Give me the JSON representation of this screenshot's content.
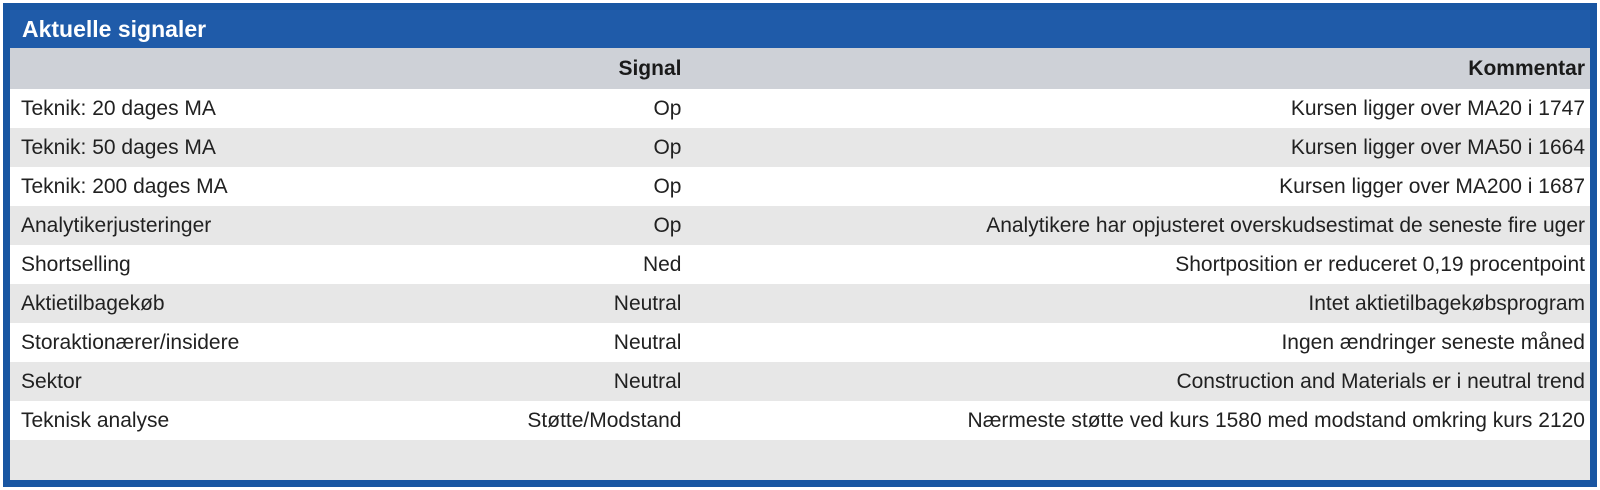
{
  "title": "Aktuelle signaler",
  "colors": {
    "border": "#1856a2",
    "title_bg": "#1f5ba9",
    "title_text": "#ffffff",
    "column_header_bg": "#ced1d7",
    "row_alt_bg": "#e7e7e7",
    "row_bg": "#ffffff",
    "text": "#212121"
  },
  "columns": {
    "name": "",
    "signal": "Signal",
    "comment": "Kommentar"
  },
  "rows": [
    {
      "name": "Teknik: 20 dages MA",
      "signal": "Op",
      "comment": "Kursen ligger over MA20 i 1747"
    },
    {
      "name": "Teknik: 50 dages MA",
      "signal": "Op",
      "comment": "Kursen ligger over MA50 i 1664"
    },
    {
      "name": "Teknik: 200 dages MA",
      "signal": "Op",
      "comment": "Kursen ligger over MA200 i 1687"
    },
    {
      "name": "Analytikerjusteringer",
      "signal": "Op",
      "comment": "Analytikere har opjusteret overskudsestimat de seneste fire uger"
    },
    {
      "name": "Shortselling",
      "signal": "Ned",
      "comment": "Shortposition er reduceret 0,19 procentpoint"
    },
    {
      "name": "Aktietilbagekøb",
      "signal": "Neutral",
      "comment": "Intet aktietilbagekøbsprogram"
    },
    {
      "name": "Storaktionærer/insidere",
      "signal": "Neutral",
      "comment": "Ingen ændringer seneste måned"
    },
    {
      "name": "Sektor",
      "signal": "Neutral",
      "comment": "Construction and Materials er i neutral trend"
    },
    {
      "name": "Teknisk analyse",
      "signal": "Støtte/Modstand",
      "comment": "Nærmeste støtte ved kurs 1580 med modstand omkring kurs 2120"
    }
  ]
}
